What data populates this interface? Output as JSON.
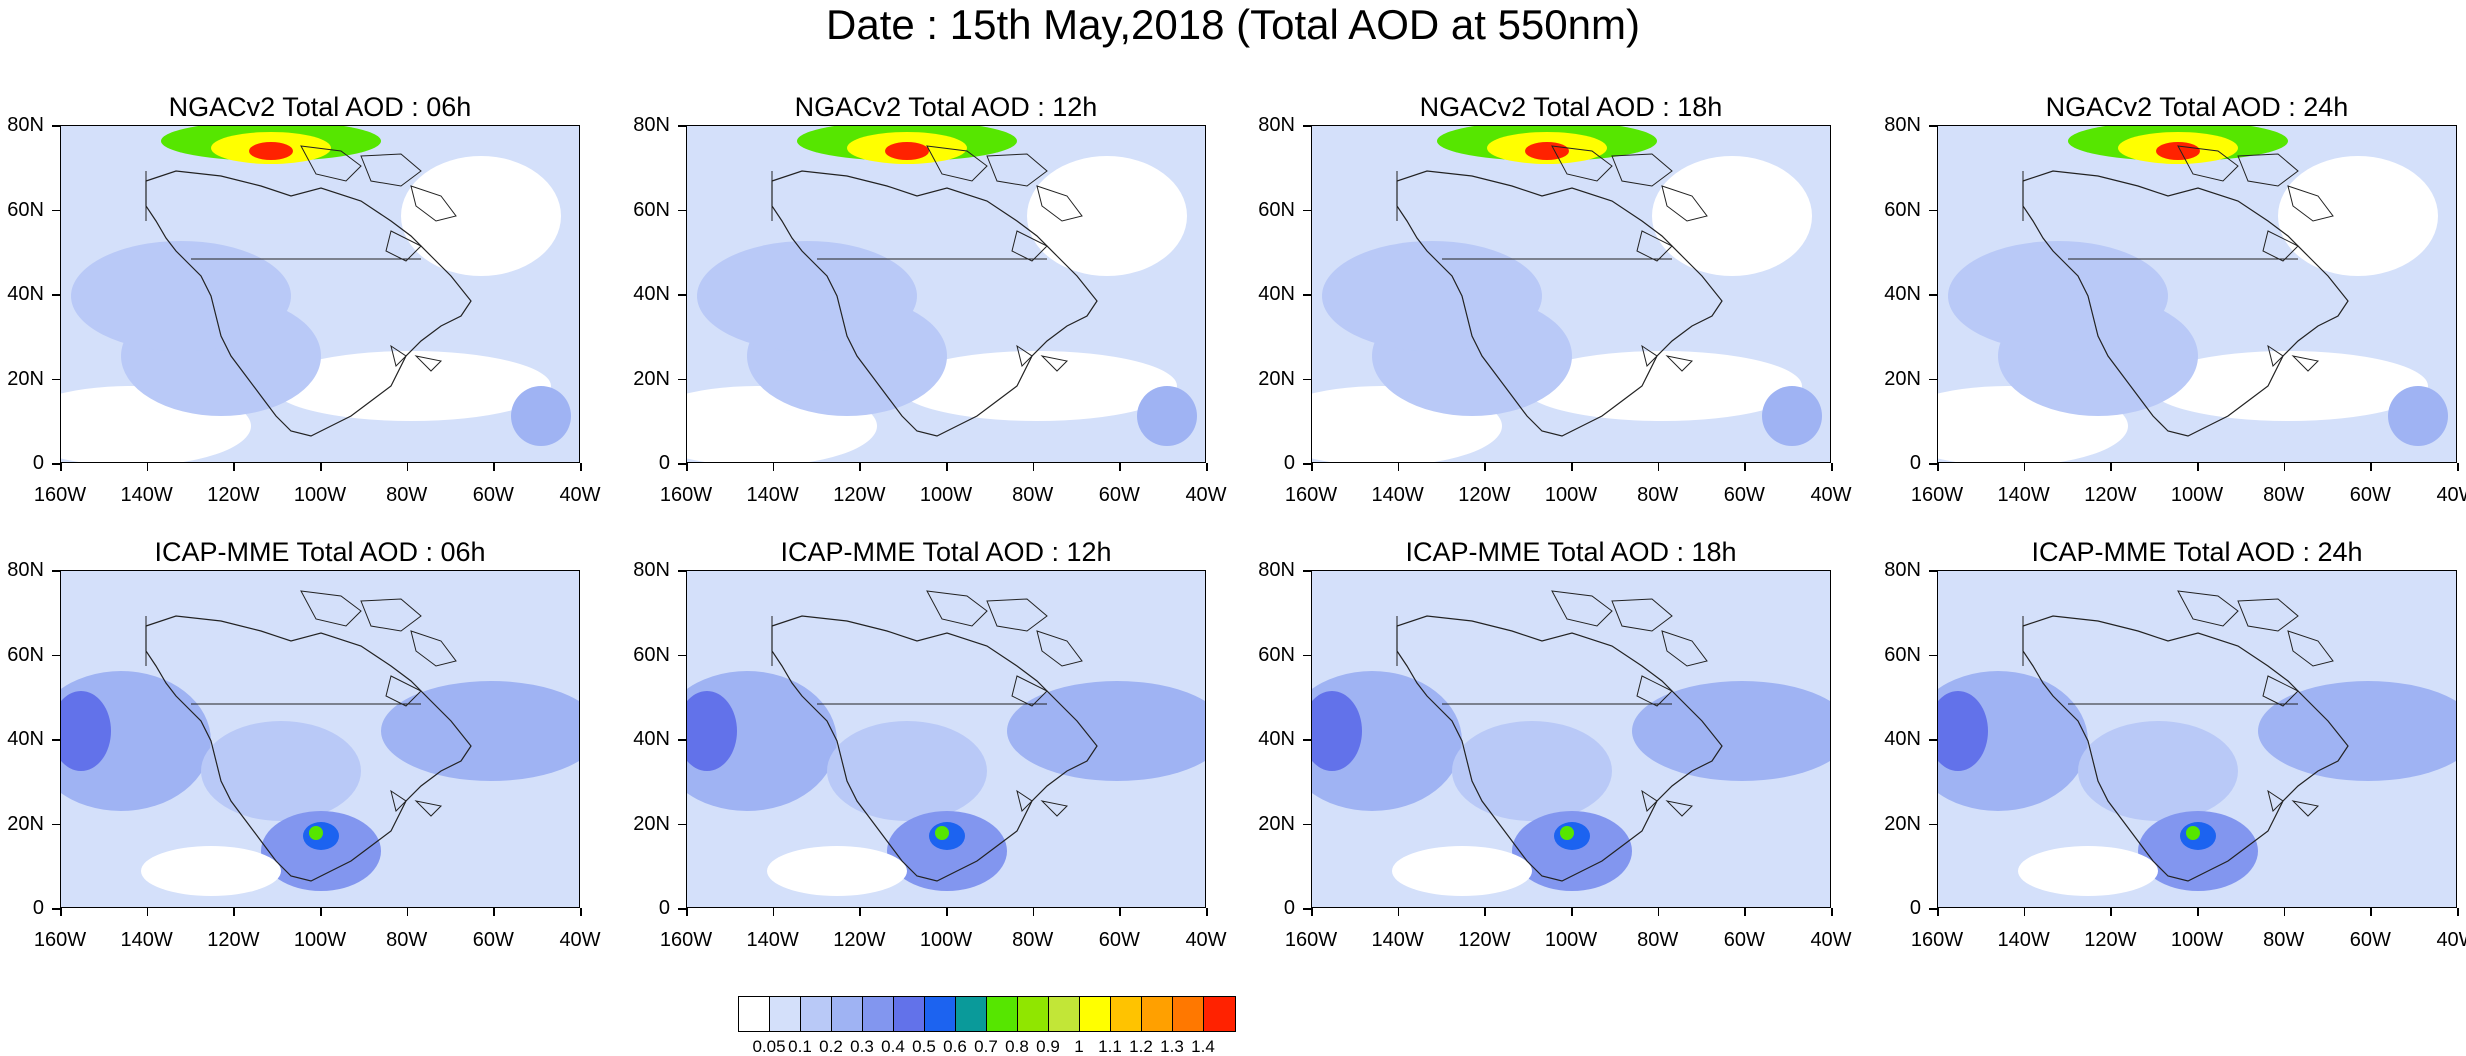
{
  "title": "Date : 15th May,2018 (Total AOD at 550nm)",
  "panels": [
    {
      "title": "NGACv2 Total AOD : 06h"
    },
    {
      "title": "NGACv2 Total AOD : 12h"
    },
    {
      "title": "NGACv2 Total AOD : 18h"
    },
    {
      "title": "NGACv2 Total AOD : 24h"
    },
    {
      "title": "ICAP-MME Total AOD : 06h"
    },
    {
      "title": "ICAP-MME Total AOD : 12h"
    },
    {
      "title": "ICAP-MME Total AOD : 18h"
    },
    {
      "title": "ICAP-MME Total AOD : 24h"
    }
  ],
  "axes": {
    "lat_labels": [
      "80N",
      "60N",
      "40N",
      "20N",
      "0"
    ],
    "lon_labels": [
      "160W",
      "140W",
      "120W",
      "100W",
      "80W",
      "60W",
      "40W"
    ]
  },
  "colorbar": {
    "labels": [
      "0.05",
      "0.1",
      "0.2",
      "0.3",
      "0.4",
      "0.5",
      "0.6",
      "0.7",
      "0.8",
      "0.9",
      "1",
      "1.1",
      "1.2",
      "1.3",
      "1.4"
    ],
    "colors": [
      "#ffffff",
      "#d4e0fa",
      "#b9c9f7",
      "#9fb3f3",
      "#8296ef",
      "#6272ea",
      "#1c63f0",
      "#0a9a9a",
      "#56e600",
      "#90e600",
      "#c2e637",
      "#ffff00",
      "#ffc300",
      "#ffa000",
      "#ff7800",
      "#ff2200"
    ]
  }
}
